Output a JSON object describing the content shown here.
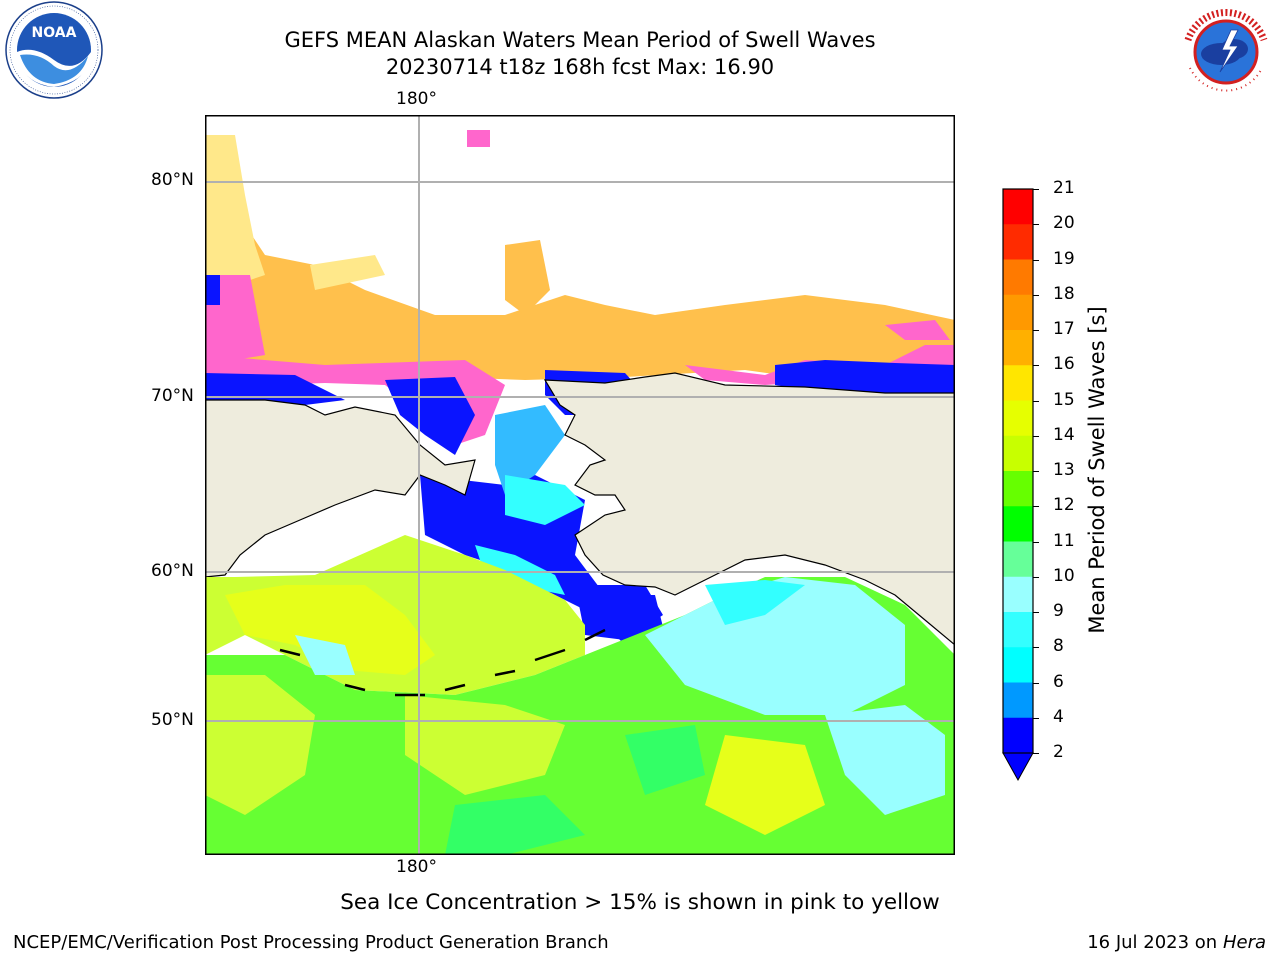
{
  "title": {
    "line1": "GEFS MEAN Alaskan Waters Mean Period of Swell Waves",
    "line2": "20230714 t18z 168h fcst   Max: 16.90"
  },
  "logos": {
    "left": {
      "name": "noaa-logo",
      "text": "NOAA"
    },
    "right": {
      "name": "nws-logo",
      "text": "NATIONAL WEATHER SERVICE"
    }
  },
  "map": {
    "lon_label_top": "180°",
    "lon_label_bottom": "180°",
    "lat_labels": [
      "80°N",
      "70°N",
      "60°N",
      "50°N"
    ],
    "land_color": "#eeecdd",
    "ocean_fill_note_colors": {
      "ice_pink": "#ff66cc",
      "ice_orange": "#ffc04c",
      "ice_yellow": "#ffe88a",
      "swell_blue": "#0a14ff",
      "swell_cyan": "#33ffff",
      "swell_lightcyan": "#99ffff",
      "swell_green": "#33ff33",
      "swell_lightgreen": "#66ff99",
      "swell_yellowgreen": "#ccff33",
      "swell_yellow": "#e6ff1a"
    }
  },
  "colorbar": {
    "label": "Mean Period of Swell Waves [s]",
    "ticks": [
      "21",
      "20",
      "19",
      "18",
      "17",
      "16",
      "15",
      "14",
      "13",
      "12",
      "11",
      "10",
      "9",
      "8",
      "6",
      "4",
      "2"
    ],
    "colors_top_to_bottom": [
      "#ff0000",
      "#ff2b00",
      "#ff5500",
      "#ff7a00",
      "#ff9900",
      "#ffb000",
      "#ffe600",
      "#f5ff00",
      "#e6ff00",
      "#c8ff00",
      "#66ff00",
      "#00ff00",
      "#33ff66",
      "#66ff99",
      "#99ffff",
      "#33ffff",
      "#00ffff",
      "#00ccff",
      "#0099ff",
      "#0000ff"
    ],
    "extend_color": "#0000ff"
  },
  "caption": "Sea Ice Concentration > 15% is shown in pink to yellow",
  "footer": {
    "left": "NCEP/EMC/Verification Post Processing Product Generation Branch",
    "right_prefix": "16 Jul 2023 on ",
    "right_italic": "Hera"
  }
}
